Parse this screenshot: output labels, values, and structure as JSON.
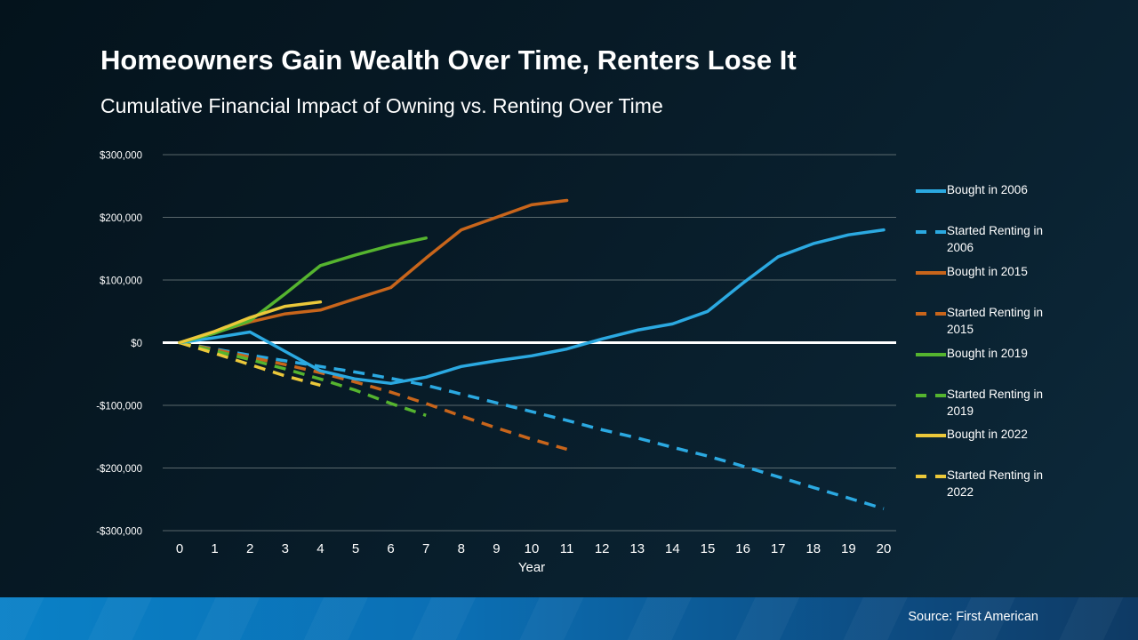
{
  "slide": {
    "title": "Homeowners Gain Wealth Over Time, Renters Lose It",
    "subtitle": "Cumulative Financial Impact of Owning vs. Renting Over Time",
    "source": "Source: First American"
  },
  "colors": {
    "blue": "#2BA9E1",
    "orange": "#C8651B",
    "green": "#55B42F",
    "yellow": "#EBC83A",
    "grid": "#9FA8A5",
    "zero_line": "#FFFFFF",
    "text": "#FFFFFF"
  },
  "chart_data": {
    "type": "line",
    "title": "Cumulative Financial Impact of Owning vs. Renting Over Time",
    "xlabel": "Year",
    "ylabel": "",
    "xlim": [
      0,
      20
    ],
    "ylim": [
      -300000,
      300000
    ],
    "grid": "horizontal-only",
    "legend_position": "right",
    "x_ticks": [
      0,
      1,
      2,
      3,
      4,
      5,
      6,
      7,
      8,
      9,
      10,
      11,
      12,
      13,
      14,
      15,
      16,
      17,
      18,
      19,
      20
    ],
    "y_ticks": [
      {
        "label": "$300,000",
        "value": 300000
      },
      {
        "label": "$200,000",
        "value": 200000
      },
      {
        "label": "$100,000",
        "value": 100000
      },
      {
        "label": "$0",
        "value": 0
      },
      {
        "label": "-$100,000",
        "value": -100000
      },
      {
        "label": "-$200,000",
        "value": -200000
      },
      {
        "label": "-$300,000",
        "value": -300000
      }
    ],
    "series": [
      {
        "name": "Started Renting in 2006",
        "color_key": "blue",
        "style": "dashed",
        "x": [
          0,
          1,
          2,
          3,
          4,
          5,
          6,
          7,
          8,
          9,
          10,
          11,
          12,
          13,
          14,
          15,
          16,
          17,
          18,
          19,
          20
        ],
        "values": [
          0,
          -10000,
          -20000,
          -29000,
          -38000,
          -47000,
          -57000,
          -68000,
          -82000,
          -96000,
          -110000,
          -124000,
          -139000,
          -152000,
          -167000,
          -181000,
          -197000,
          -214000,
          -231000,
          -248000,
          -265000
        ]
      },
      {
        "name": "Started Renting in 2015",
        "color_key": "orange",
        "style": "dashed",
        "x": [
          0,
          1,
          2,
          3,
          4,
          5,
          6,
          7,
          8,
          9,
          10,
          11
        ],
        "values": [
          0,
          -11000,
          -23000,
          -35000,
          -48000,
          -63000,
          -79000,
          -97000,
          -117000,
          -136000,
          -154000,
          -170000
        ]
      },
      {
        "name": "Started Renting in 2019",
        "color_key": "green",
        "style": "dashed",
        "x": [
          0,
          1,
          2,
          3,
          4,
          5,
          6,
          7
        ],
        "values": [
          0,
          -13000,
          -27000,
          -42000,
          -58000,
          -76000,
          -97000,
          -116000
        ]
      },
      {
        "name": "Started Renting in 2022",
        "color_key": "yellow",
        "style": "dashed",
        "x": [
          0,
          1,
          2,
          3,
          4
        ],
        "values": [
          0,
          -17000,
          -35000,
          -53000,
          -68000
        ]
      },
      {
        "name": "Bought in 2006",
        "color_key": "blue",
        "style": "solid",
        "x": [
          0,
          1,
          2,
          3,
          4,
          5,
          6,
          7,
          8,
          9,
          10,
          11,
          12,
          13,
          14,
          15,
          16,
          17,
          18,
          19,
          20
        ],
        "values": [
          0,
          8000,
          17000,
          -14000,
          -45000,
          -58000,
          -65000,
          -55000,
          -38000,
          -29000,
          -21000,
          -10000,
          6000,
          20000,
          30000,
          50000,
          95000,
          137000,
          158000,
          172000,
          180000
        ]
      },
      {
        "name": "Bought in 2015",
        "color_key": "orange",
        "style": "solid",
        "x": [
          0,
          1,
          2,
          3,
          4,
          5,
          6,
          7,
          8,
          9,
          10,
          11
        ],
        "values": [
          0,
          16000,
          33000,
          46000,
          52000,
          70000,
          88000,
          135000,
          180000,
          200000,
          220000,
          227000
        ]
      },
      {
        "name": "Bought in 2019",
        "color_key": "green",
        "style": "solid",
        "x": [
          0,
          1,
          2,
          3,
          4,
          5,
          6,
          7
        ],
        "values": [
          0,
          15000,
          35000,
          78000,
          123000,
          140000,
          155000,
          167000
        ]
      },
      {
        "name": "Bought in 2022",
        "color_key": "yellow",
        "style": "solid",
        "x": [
          0,
          1,
          2,
          3,
          4
        ],
        "values": [
          0,
          18000,
          40000,
          58000,
          65000
        ]
      }
    ],
    "legend_order": [
      "Bought in 2006",
      "Started Renting in 2006",
      "Bought in 2015",
      "Started Renting in 2015",
      "Bought in 2019",
      "Started Renting in 2019",
      "Bought in 2022",
      "Started Renting in 2022"
    ]
  }
}
